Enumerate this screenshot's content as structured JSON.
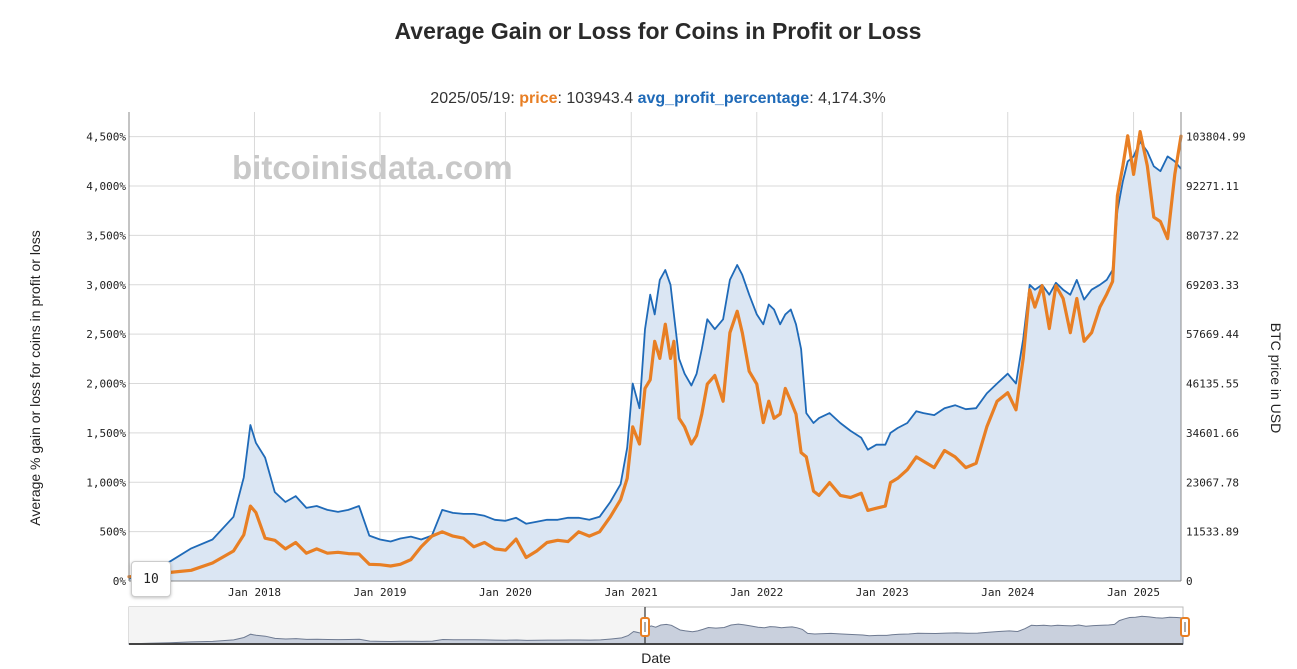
{
  "chart_data": {
    "type": "line",
    "title": "Average Gain or Loss for Coins in Profit or Loss",
    "watermark": "bitcoinisdata.com",
    "hover": {
      "date": "2025/05/19",
      "price_label": "price",
      "price_value": "103943.4",
      "avg_label": "avg_profit_percentage",
      "avg_value": "4,174.3%"
    },
    "ylabel_left": "Average % gain or loss for coins in profit or loss",
    "ylabel_right": "BTC price in USD",
    "xlabel": "Date",
    "rolling_window": "10",
    "x_ticks": [
      "Jan 2018",
      "Jan 2019",
      "Jan 2020",
      "Jan 2021",
      "Jan 2022",
      "Jan 2023",
      "Jan 2024",
      "Jan 2025"
    ],
    "y_left_ticks": [
      "0%",
      "500%",
      "1,000%",
      "1,500%",
      "2,000%",
      "2,500%",
      "3,000%",
      "3,500%",
      "4,000%",
      "4,500%"
    ],
    "y_right_ticks": [
      "0",
      "11533.89",
      "23067.78",
      "34601.66",
      "46135.55",
      "57669.44",
      "69203.33",
      "80737.22",
      "92271.11",
      "103804.99"
    ],
    "ylim_left": [
      0,
      4750
    ],
    "ylim_right": [
      0,
      109571.93
    ],
    "xlim": [
      "2017-01-01",
      "2025-05-19"
    ],
    "colors": {
      "price": "#e87f24",
      "avg_profit_percentage": "#1f6ab8",
      "fill": "#dbe6f3"
    },
    "grid": true,
    "series": [
      {
        "name": "avg_profit_percentage",
        "axis": "left",
        "points": [
          [
            "2017-01-01",
            20
          ],
          [
            "2017-03-01",
            120
          ],
          [
            "2017-05-01",
            200
          ],
          [
            "2017-07-01",
            330
          ],
          [
            "2017-09-01",
            420
          ],
          [
            "2017-11-01",
            650
          ],
          [
            "2017-12-01",
            1050
          ],
          [
            "2017-12-20",
            1580
          ],
          [
            "2018-01-05",
            1400
          ],
          [
            "2018-02-01",
            1250
          ],
          [
            "2018-03-01",
            900
          ],
          [
            "2018-04-01",
            800
          ],
          [
            "2018-05-01",
            860
          ],
          [
            "2018-06-01",
            740
          ],
          [
            "2018-07-01",
            760
          ],
          [
            "2018-08-01",
            720
          ],
          [
            "2018-09-01",
            700
          ],
          [
            "2018-10-01",
            720
          ],
          [
            "2018-11-01",
            760
          ],
          [
            "2018-12-01",
            460
          ],
          [
            "2019-01-01",
            420
          ],
          [
            "2019-02-01",
            400
          ],
          [
            "2019-03-01",
            430
          ],
          [
            "2019-04-01",
            450
          ],
          [
            "2019-05-01",
            420
          ],
          [
            "2019-06-01",
            460
          ],
          [
            "2019-07-01",
            720
          ],
          [
            "2019-08-01",
            690
          ],
          [
            "2019-09-01",
            680
          ],
          [
            "2019-10-01",
            680
          ],
          [
            "2019-11-01",
            660
          ],
          [
            "2019-12-01",
            620
          ],
          [
            "2020-01-01",
            610
          ],
          [
            "2020-02-01",
            640
          ],
          [
            "2020-03-01",
            580
          ],
          [
            "2020-04-01",
            600
          ],
          [
            "2020-05-01",
            620
          ],
          [
            "2020-06-01",
            620
          ],
          [
            "2020-07-01",
            640
          ],
          [
            "2020-08-01",
            640
          ],
          [
            "2020-09-01",
            620
          ],
          [
            "2020-10-01",
            650
          ],
          [
            "2020-11-01",
            800
          ],
          [
            "2020-12-01",
            980
          ],
          [
            "2020-12-20",
            1350
          ],
          [
            "2021-01-05",
            2000
          ],
          [
            "2021-01-25",
            1750
          ],
          [
            "2021-02-10",
            2550
          ],
          [
            "2021-02-25",
            2900
          ],
          [
            "2021-03-10",
            2700
          ],
          [
            "2021-03-25",
            3050
          ],
          [
            "2021-04-10",
            3150
          ],
          [
            "2021-04-25",
            3000
          ],
          [
            "2021-05-05",
            2700
          ],
          [
            "2021-05-20",
            2250
          ],
          [
            "2021-06-05",
            2100
          ],
          [
            "2021-06-25",
            1980
          ],
          [
            "2021-07-10",
            2100
          ],
          [
            "2021-07-25",
            2350
          ],
          [
            "2021-08-10",
            2650
          ],
          [
            "2021-09-01",
            2550
          ],
          [
            "2021-09-25",
            2650
          ],
          [
            "2021-10-15",
            3050
          ],
          [
            "2021-11-05",
            3200
          ],
          [
            "2021-11-20",
            3100
          ],
          [
            "2021-12-10",
            2900
          ],
          [
            "2022-01-01",
            2700
          ],
          [
            "2022-01-20",
            2600
          ],
          [
            "2022-02-05",
            2800
          ],
          [
            "2022-02-20",
            2750
          ],
          [
            "2022-03-10",
            2600
          ],
          [
            "2022-03-25",
            2700
          ],
          [
            "2022-04-10",
            2750
          ],
          [
            "2022-04-25",
            2600
          ],
          [
            "2022-05-10",
            2350
          ],
          [
            "2022-05-25",
            1700
          ],
          [
            "2022-06-15",
            1600
          ],
          [
            "2022-07-01",
            1650
          ],
          [
            "2022-08-01",
            1700
          ],
          [
            "2022-09-01",
            1600
          ],
          [
            "2022-10-01",
            1520
          ],
          [
            "2022-11-01",
            1450
          ],
          [
            "2022-11-20",
            1330
          ],
          [
            "2022-12-15",
            1380
          ],
          [
            "2023-01-10",
            1380
          ],
          [
            "2023-01-25",
            1500
          ],
          [
            "2023-02-15",
            1550
          ],
          [
            "2023-03-15",
            1600
          ],
          [
            "2023-04-10",
            1720
          ],
          [
            "2023-05-01",
            1700
          ],
          [
            "2023-06-01",
            1680
          ],
          [
            "2023-07-01",
            1750
          ],
          [
            "2023-08-01",
            1780
          ],
          [
            "2023-09-01",
            1740
          ],
          [
            "2023-10-01",
            1750
          ],
          [
            "2023-11-01",
            1900
          ],
          [
            "2023-12-01",
            2000
          ],
          [
            "2024-01-01",
            2100
          ],
          [
            "2024-01-25",
            2000
          ],
          [
            "2024-02-15",
            2450
          ],
          [
            "2024-03-05",
            3000
          ],
          [
            "2024-03-20",
            2950
          ],
          [
            "2024-04-10",
            3000
          ],
          [
            "2024-05-01",
            2900
          ],
          [
            "2024-05-20",
            3020
          ],
          [
            "2024-06-10",
            2950
          ],
          [
            "2024-07-01",
            2900
          ],
          [
            "2024-07-20",
            3050
          ],
          [
            "2024-08-10",
            2850
          ],
          [
            "2024-09-01",
            2950
          ],
          [
            "2024-09-25",
            3000
          ],
          [
            "2024-10-15",
            3050
          ],
          [
            "2024-11-01",
            3150
          ],
          [
            "2024-11-15",
            3750
          ],
          [
            "2024-12-01",
            4050
          ],
          [
            "2024-12-15",
            4250
          ],
          [
            "2025-01-01",
            4300
          ],
          [
            "2025-01-20",
            4450
          ],
          [
            "2025-02-10",
            4350
          ],
          [
            "2025-03-01",
            4200
          ],
          [
            "2025-03-20",
            4150
          ],
          [
            "2025-04-10",
            4300
          ],
          [
            "2025-05-01",
            4250
          ],
          [
            "2025-05-19",
            4174.3
          ]
        ]
      },
      {
        "name": "price",
        "axis": "right",
        "points": [
          [
            "2017-01-01",
            1000
          ],
          [
            "2017-03-01",
            1150
          ],
          [
            "2017-05-01",
            2000
          ],
          [
            "2017-07-01",
            2500
          ],
          [
            "2017-09-01",
            4200
          ],
          [
            "2017-11-01",
            7000
          ],
          [
            "2017-12-01",
            10800
          ],
          [
            "2017-12-20",
            17500
          ],
          [
            "2018-01-05",
            16000
          ],
          [
            "2018-02-01",
            10000
          ],
          [
            "2018-03-01",
            9500
          ],
          [
            "2018-04-01",
            7500
          ],
          [
            "2018-05-01",
            9000
          ],
          [
            "2018-06-01",
            6500
          ],
          [
            "2018-07-01",
            7500
          ],
          [
            "2018-08-01",
            6500
          ],
          [
            "2018-09-01",
            6700
          ],
          [
            "2018-10-01",
            6400
          ],
          [
            "2018-11-01",
            6300
          ],
          [
            "2018-12-01",
            3900
          ],
          [
            "2019-01-01",
            3800
          ],
          [
            "2019-02-01",
            3500
          ],
          [
            "2019-03-01",
            3900
          ],
          [
            "2019-04-01",
            5000
          ],
          [
            "2019-05-01",
            8000
          ],
          [
            "2019-06-01",
            10500
          ],
          [
            "2019-07-01",
            11500
          ],
          [
            "2019-08-01",
            10500
          ],
          [
            "2019-09-01",
            10000
          ],
          [
            "2019-10-01",
            8000
          ],
          [
            "2019-11-01",
            9000
          ],
          [
            "2019-12-01",
            7500
          ],
          [
            "2020-01-01",
            7200
          ],
          [
            "2020-02-01",
            9800
          ],
          [
            "2020-03-01",
            5500
          ],
          [
            "2020-04-01",
            7000
          ],
          [
            "2020-05-01",
            9000
          ],
          [
            "2020-06-01",
            9500
          ],
          [
            "2020-07-01",
            9200
          ],
          [
            "2020-08-01",
            11500
          ],
          [
            "2020-09-01",
            10500
          ],
          [
            "2020-10-01",
            11500
          ],
          [
            "2020-11-01",
            15000
          ],
          [
            "2020-12-01",
            19000
          ],
          [
            "2020-12-20",
            24000
          ],
          [
            "2021-01-05",
            36000
          ],
          [
            "2021-01-25",
            32000
          ],
          [
            "2021-02-10",
            45000
          ],
          [
            "2021-02-25",
            47000
          ],
          [
            "2021-03-10",
            56000
          ],
          [
            "2021-03-25",
            52000
          ],
          [
            "2021-04-10",
            60000
          ],
          [
            "2021-04-25",
            52000
          ],
          [
            "2021-05-05",
            56000
          ],
          [
            "2021-05-20",
            38000
          ],
          [
            "2021-06-05",
            36000
          ],
          [
            "2021-06-25",
            32000
          ],
          [
            "2021-07-10",
            34000
          ],
          [
            "2021-07-25",
            39000
          ],
          [
            "2021-08-10",
            46000
          ],
          [
            "2021-09-01",
            48000
          ],
          [
            "2021-09-25",
            42000
          ],
          [
            "2021-10-15",
            58000
          ],
          [
            "2021-11-05",
            63000
          ],
          [
            "2021-11-20",
            58000
          ],
          [
            "2021-12-10",
            49000
          ],
          [
            "2022-01-01",
            46000
          ],
          [
            "2022-01-20",
            37000
          ],
          [
            "2022-02-05",
            42000
          ],
          [
            "2022-02-20",
            38000
          ],
          [
            "2022-03-10",
            39000
          ],
          [
            "2022-03-25",
            45000
          ],
          [
            "2022-04-10",
            42000
          ],
          [
            "2022-04-25",
            39000
          ],
          [
            "2022-05-10",
            30000
          ],
          [
            "2022-05-25",
            29000
          ],
          [
            "2022-06-15",
            21000
          ],
          [
            "2022-07-01",
            20000
          ],
          [
            "2022-08-01",
            23000
          ],
          [
            "2022-09-01",
            20000
          ],
          [
            "2022-10-01",
            19500
          ],
          [
            "2022-11-01",
            20500
          ],
          [
            "2022-11-20",
            16500
          ],
          [
            "2022-12-15",
            17000
          ],
          [
            "2023-01-10",
            17500
          ],
          [
            "2023-01-25",
            23000
          ],
          [
            "2023-02-15",
            24000
          ],
          [
            "2023-03-15",
            26000
          ],
          [
            "2023-04-10",
            29000
          ],
          [
            "2023-05-01",
            28000
          ],
          [
            "2023-06-01",
            26500
          ],
          [
            "2023-07-01",
            30500
          ],
          [
            "2023-08-01",
            29000
          ],
          [
            "2023-09-01",
            26500
          ],
          [
            "2023-10-01",
            27500
          ],
          [
            "2023-11-01",
            36000
          ],
          [
            "2023-12-01",
            42000
          ],
          [
            "2024-01-01",
            44000
          ],
          [
            "2024-01-25",
            40000
          ],
          [
            "2024-02-15",
            52000
          ],
          [
            "2024-03-05",
            68000
          ],
          [
            "2024-03-20",
            64000
          ],
          [
            "2024-04-10",
            69000
          ],
          [
            "2024-05-01",
            59000
          ],
          [
            "2024-05-20",
            69000
          ],
          [
            "2024-06-10",
            66000
          ],
          [
            "2024-07-01",
            58000
          ],
          [
            "2024-07-20",
            66000
          ],
          [
            "2024-08-10",
            56000
          ],
          [
            "2024-09-01",
            58000
          ],
          [
            "2024-09-25",
            64000
          ],
          [
            "2024-10-15",
            67000
          ],
          [
            "2024-11-01",
            70000
          ],
          [
            "2024-11-15",
            90000
          ],
          [
            "2024-12-01",
            97000
          ],
          [
            "2024-12-15",
            104000
          ],
          [
            "2025-01-01",
            95000
          ],
          [
            "2025-01-20",
            105000
          ],
          [
            "2025-02-10",
            97000
          ],
          [
            "2025-03-01",
            85000
          ],
          [
            "2025-03-20",
            84000
          ],
          [
            "2025-04-10",
            80000
          ],
          [
            "2025-05-01",
            95000
          ],
          [
            "2025-05-19",
            103943.4
          ]
        ]
      }
    ]
  }
}
